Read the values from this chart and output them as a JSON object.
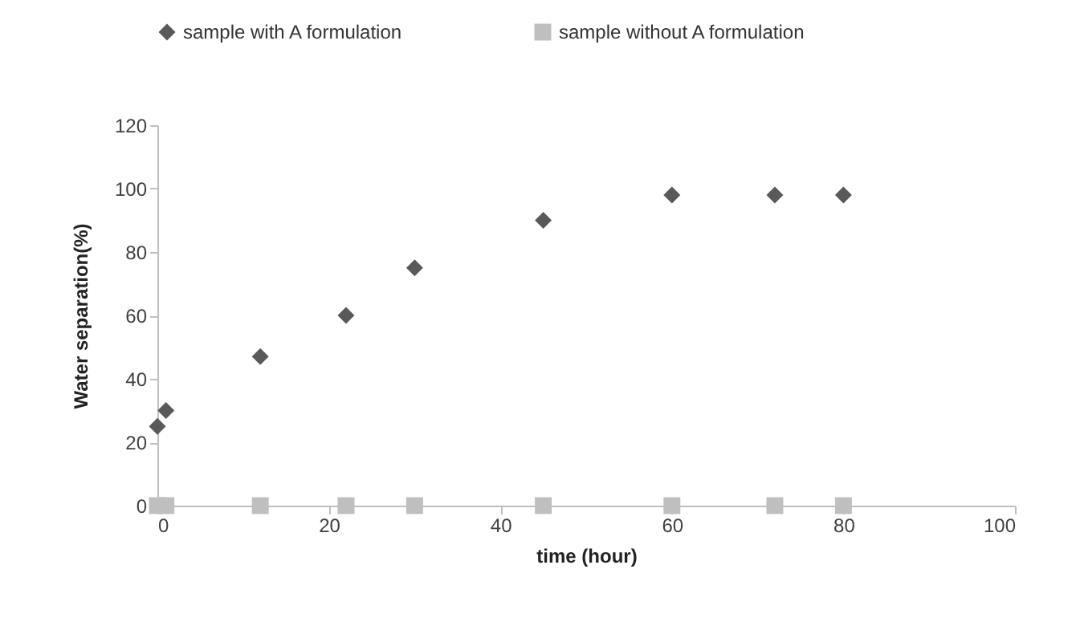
{
  "chart_data": {
    "type": "scatter",
    "xlabel": "time (hour)",
    "ylabel": "Water separation(%)",
    "x": [
      0,
      1,
      12,
      22,
      30,
      45,
      60,
      72,
      80
    ],
    "series": [
      {
        "name": "sample with A formulation",
        "color": "#595959",
        "marker": "diamond",
        "values": [
          25,
          30,
          47,
          60,
          75,
          90,
          98,
          98,
          98
        ]
      },
      {
        "name": "sample without A formulation",
        "color": "#bfbfbf",
        "marker": "square",
        "values": [
          0,
          0,
          0,
          0,
          0,
          0,
          0,
          0,
          0
        ]
      }
    ],
    "xlim": [
      0,
      100
    ],
    "xticks": [
      0,
      20,
      40,
      60,
      80,
      100
    ],
    "ylim": [
      0,
      120
    ],
    "yticks": [
      0,
      20,
      40,
      60,
      80,
      100,
      120
    ],
    "grid": false,
    "legend": "top"
  }
}
